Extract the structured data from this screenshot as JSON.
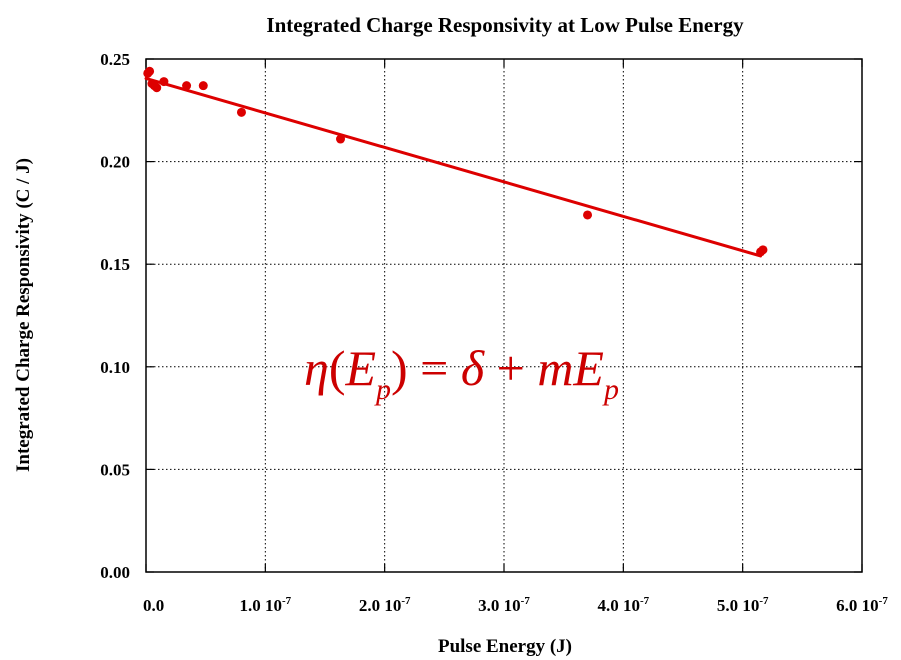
{
  "chart_data": {
    "type": "scatter",
    "title": "Integrated Charge Responsivity at Low Pulse Energy",
    "xlabel": "Pulse Energy (J)",
    "ylabel": "Integrated Charge Responsivity (C / J)",
    "xlim": [
      0,
      6e-07
    ],
    "ylim": [
      0,
      0.25
    ],
    "x_ticks": [
      {
        "value": 0,
        "mant": "0.0",
        "exp": ""
      },
      {
        "value": 1e-07,
        "mant": "1.0 10",
        "exp": "-7"
      },
      {
        "value": 2e-07,
        "mant": "2.0 10",
        "exp": "-7"
      },
      {
        "value": 3e-07,
        "mant": "3.0 10",
        "exp": "-7"
      },
      {
        "value": 4e-07,
        "mant": "4.0 10",
        "exp": "-7"
      },
      {
        "value": 5e-07,
        "mant": "5.0 10",
        "exp": "-7"
      },
      {
        "value": 6e-07,
        "mant": "6.0 10",
        "exp": "-7"
      }
    ],
    "y_ticks": [
      {
        "value": 0.0,
        "label": "0.00"
      },
      {
        "value": 0.05,
        "label": "0.05"
      },
      {
        "value": 0.1,
        "label": "0.10"
      },
      {
        "value": 0.15,
        "label": "0.15"
      },
      {
        "value": 0.2,
        "label": "0.20"
      },
      {
        "value": 0.25,
        "label": "0.25"
      }
    ],
    "grid": true,
    "grid_style": "dotted",
    "series": [
      {
        "kind": "scatter",
        "color": "#dd0000",
        "x": [
          1.5e-09,
          3e-09,
          5e-09,
          7e-09,
          9e-09,
          1.5e-08,
          3.4e-08,
          4.8e-08,
          8e-08,
          1.63e-07,
          3.7e-07,
          5.15e-07,
          5.17e-07
        ],
        "y": [
          0.243,
          0.244,
          0.238,
          0.237,
          0.236,
          0.239,
          0.237,
          0.237,
          0.224,
          0.211,
          0.174,
          0.156,
          0.157
        ]
      },
      {
        "kind": "line",
        "color": "#dd0000",
        "x": [
          0,
          5.15e-07
        ],
        "y": [
          0.2405,
          0.154
        ]
      }
    ],
    "annotation": {
      "eta": "η",
      "lparen": "(",
      "E1": "E",
      "p1": "p",
      "rparen": ")",
      "eq": " = ",
      "delta": "δ",
      "plus": " + ",
      "mE": "mE",
      "p2": "p",
      "color": "#cc0000"
    }
  }
}
